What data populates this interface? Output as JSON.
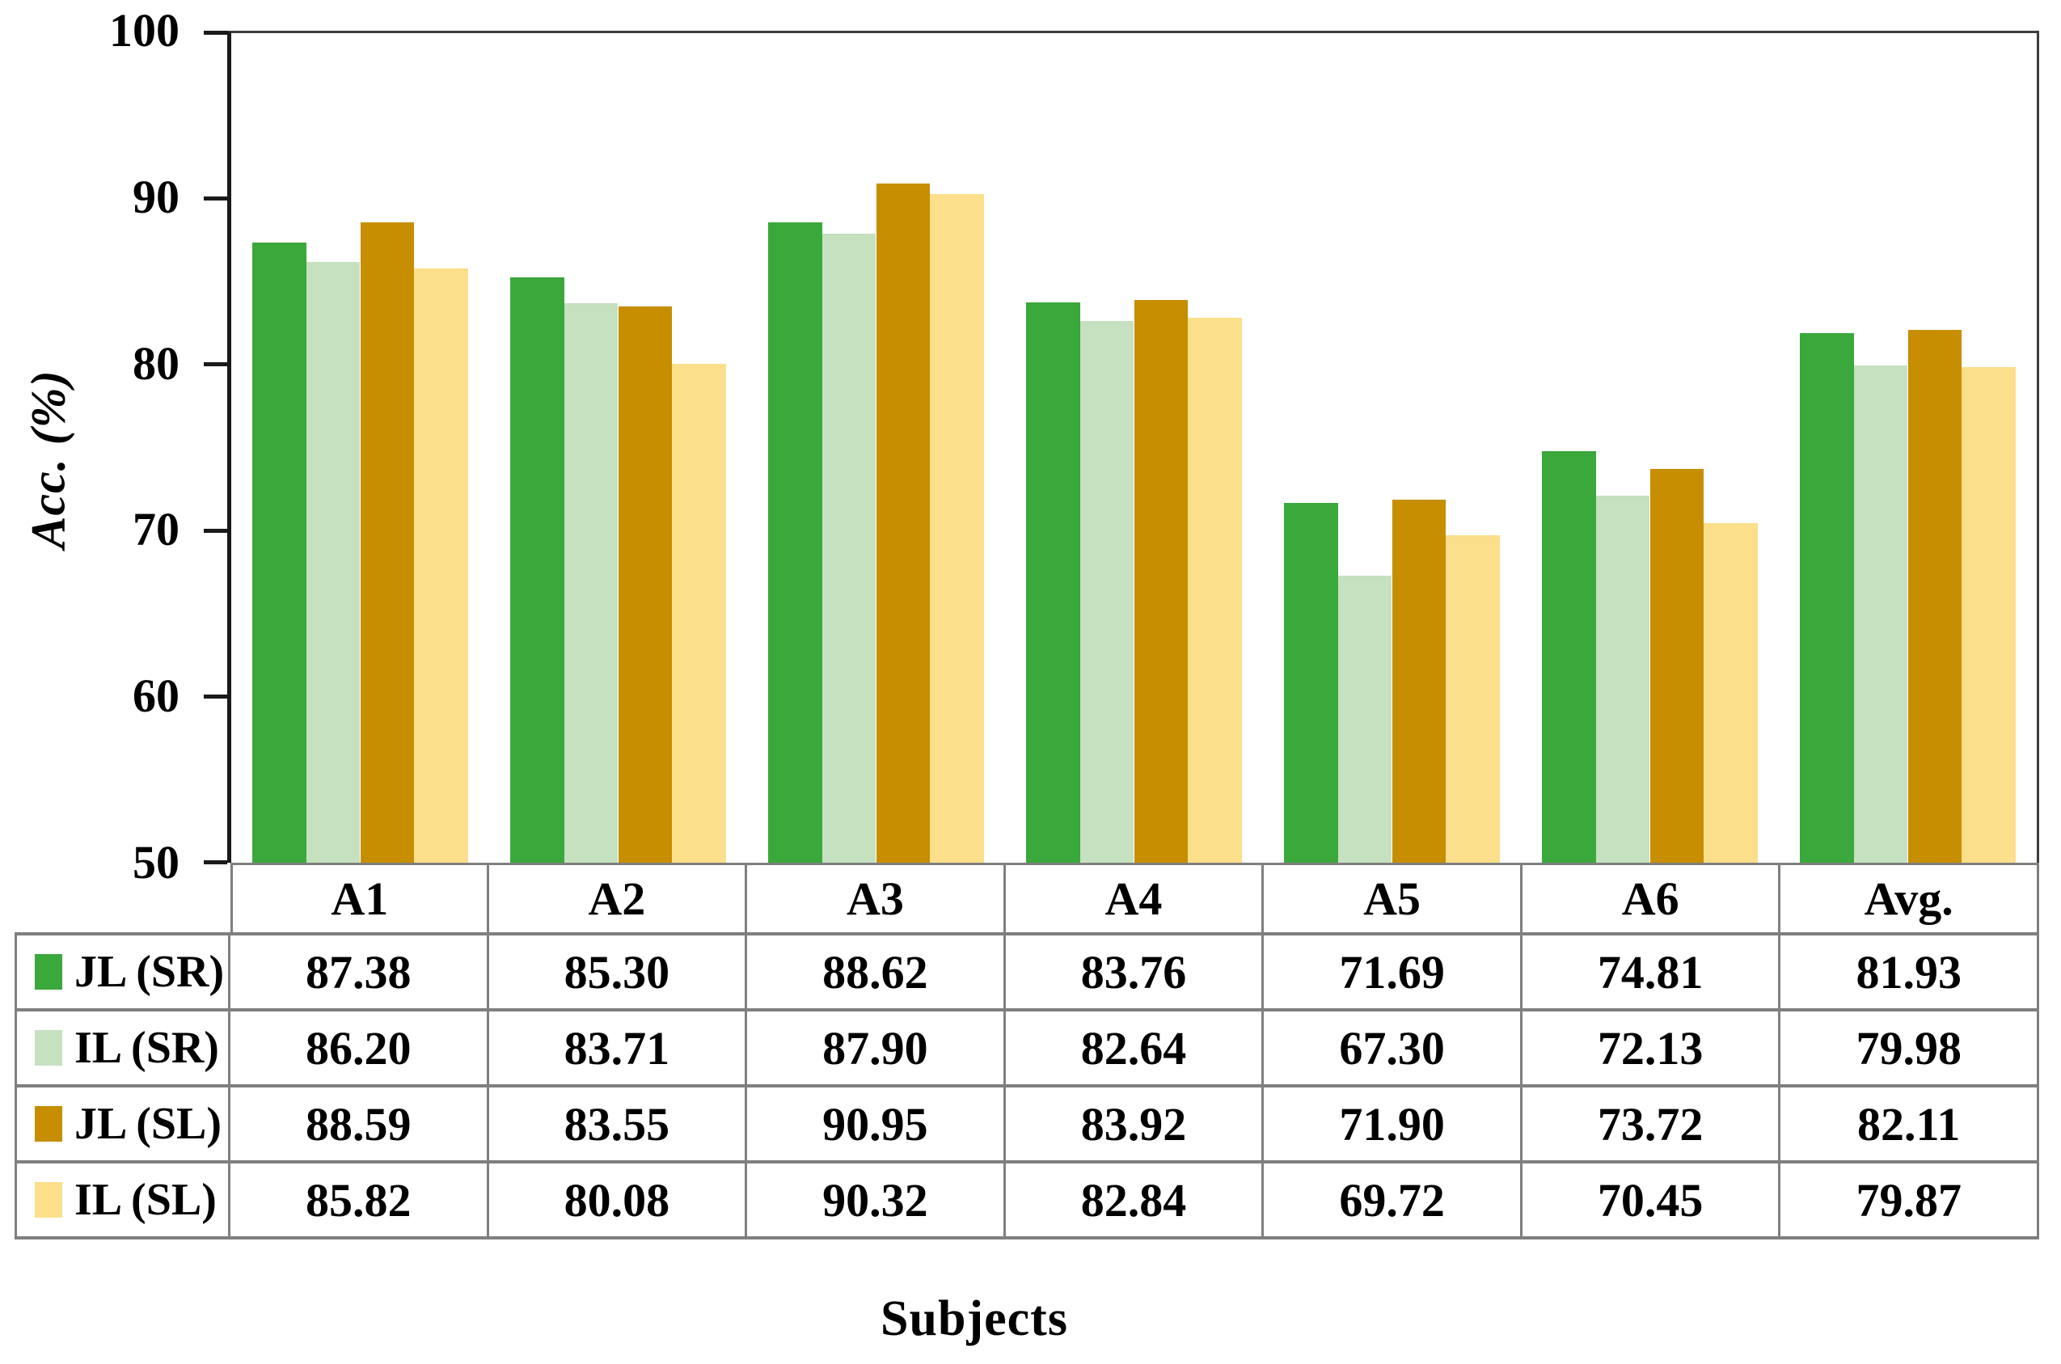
{
  "chart_data": {
    "type": "bar",
    "x_axis_title": "Subjects",
    "y_axis_title": "Acc. (%)",
    "ylim": [
      50,
      100
    ],
    "yticks": [
      100,
      90,
      80,
      70,
      60,
      50
    ],
    "grid": false,
    "legend_position": "table-left",
    "value_decimals": 2,
    "categories": [
      "A1",
      "A2",
      "A3",
      "A4",
      "A5",
      "A6",
      "Avg."
    ],
    "series": [
      {
        "name": "JL (SR)",
        "color": "#3BA83B",
        "values": [
          87.38,
          85.3,
          88.62,
          83.76,
          71.69,
          74.81,
          81.93
        ]
      },
      {
        "name": "IL (SR)",
        "color": "#C5E1C0",
        "values": [
          86.2,
          83.71,
          87.9,
          82.64,
          67.3,
          72.13,
          79.98
        ]
      },
      {
        "name": "JL (SL)",
        "color": "#C68E00",
        "values": [
          88.59,
          83.55,
          90.95,
          83.92,
          71.9,
          73.72,
          82.11
        ]
      },
      {
        "name": "IL (SL)",
        "color": "#FBDF8A",
        "values": [
          85.82,
          80.08,
          90.32,
          82.84,
          69.72,
          70.45,
          79.87
        ]
      }
    ],
    "colors": {
      "axis_line": "#1a1a1a",
      "plot_border": "#3d3d3d",
      "table_border": "#7f7f7f",
      "text": "#000000"
    }
  }
}
